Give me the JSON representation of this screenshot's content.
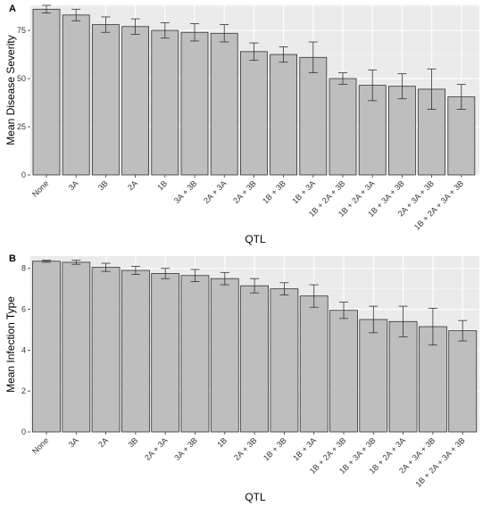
{
  "chart_data": [
    {
      "panel": "A",
      "type": "bar",
      "xlabel": "QTL",
      "ylabel": "Mean Disease Severity",
      "ylim": [
        0,
        88
      ],
      "yticks": [
        0,
        25,
        50,
        75
      ],
      "grid": true,
      "categories": [
        "None",
        "3A",
        "3B",
        "2A",
        "1B",
        "3A + 3B",
        "2A + 3A",
        "2A + 3B",
        "1B + 3B",
        "1B + 3A",
        "1B + 2A + 3B",
        "1B + 2A + 3A",
        "1B + 3A + 3B",
        "2A + 3A + 3B",
        "1B + 2A + 3A + 3B"
      ],
      "values": [
        86,
        83,
        78,
        77,
        75,
        74,
        73.5,
        64,
        62.5,
        61,
        50,
        46.5,
        46,
        44.5,
        40.5
      ],
      "errors": [
        2,
        3,
        4,
        4,
        4,
        4.5,
        4.5,
        4.5,
        4,
        8,
        3,
        8,
        6.5,
        10.5,
        6.5
      ]
    },
    {
      "panel": "B",
      "type": "bar",
      "xlabel": "QTL",
      "ylabel": "Mean Infection Type",
      "ylim": [
        0,
        8.6
      ],
      "yticks": [
        0,
        2,
        4,
        6,
        8
      ],
      "grid": true,
      "categories": [
        "None",
        "3A",
        "2A",
        "3B",
        "2A + 3A",
        "3A + 3B",
        "1B",
        "2A + 3B",
        "1B + 3B",
        "1B + 3A",
        "1B + 2A + 3B",
        "1B + 3A + 3B",
        "1B + 2A + 3A",
        "2A + 3A + 3B",
        "1B + 2A + 3A + 3B"
      ],
      "values": [
        8.35,
        8.3,
        8.05,
        7.9,
        7.75,
        7.65,
        7.5,
        7.15,
        7.0,
        6.65,
        5.95,
        5.5,
        5.4,
        5.15,
        4.95
      ],
      "errors": [
        0.05,
        0.1,
        0.2,
        0.2,
        0.25,
        0.3,
        0.3,
        0.35,
        0.3,
        0.55,
        0.4,
        0.65,
        0.75,
        0.9,
        0.5
      ]
    }
  ]
}
